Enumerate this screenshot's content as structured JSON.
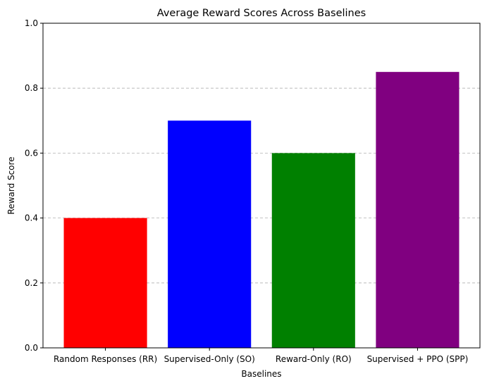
{
  "chart_data": {
    "type": "bar",
    "title": "Average Reward Scores Across Baselines",
    "xlabel": "Baselines",
    "ylabel": "Reward Score",
    "categories": [
      "Random Responses (RR)",
      "Supervised-Only (SO)",
      "Reward-Only (RO)",
      "Supervised + PPO (SPP)"
    ],
    "values": [
      0.4,
      0.7,
      0.6,
      0.85
    ],
    "colors": [
      "#ff0000",
      "#0000ff",
      "#008000",
      "#800080"
    ],
    "ylim": [
      0,
      1
    ],
    "yticks": [
      0,
      0.2,
      0.4,
      0.6,
      0.8,
      1
    ],
    "ytick_labels": [
      "0.0",
      "0.2",
      "0.4",
      "0.6",
      "0.8",
      "1.0"
    ],
    "grid": "y-axis dashed",
    "legend": "none"
  }
}
